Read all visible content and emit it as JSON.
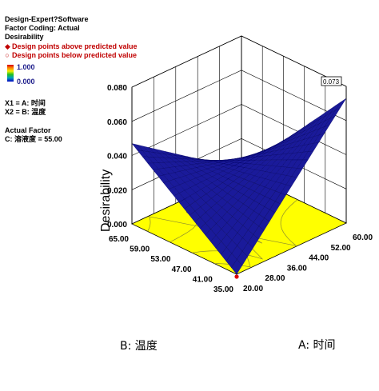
{
  "info": {
    "software": "Design-Expert?Software",
    "coding": "Factor Coding: Actual",
    "response": "Desirability",
    "legend_above": "Design points above predicted value",
    "legend_below": "Design points below predicted value",
    "colorbar_max": "1.000",
    "colorbar_min": "0.000",
    "x1": "X1 = A: 时间",
    "x2": "X2 = B: 温度",
    "actual_factor_header": "Actual Factor",
    "actual_factor": "C: 溶液度 = 55.00"
  },
  "colors": {
    "surface": "#1a1a9a",
    "floor": "#ffff00",
    "design_point": "#e00000"
  },
  "chart_data": {
    "type": "surface3d",
    "xlabel": "A: 时间",
    "ylabel": "B: 温度",
    "zlabel": "Desirability",
    "x_ticks": [
      "20.00",
      "28.00",
      "36.00",
      "44.00",
      "52.00",
      "60.00"
    ],
    "y_ticks": [
      "35.00",
      "41.00",
      "47.00",
      "53.00",
      "59.00",
      "65.00"
    ],
    "z_ticks": [
      "0.000",
      "0.020",
      "0.040",
      "0.060",
      "0.080"
    ],
    "xlim": [
      20,
      60
    ],
    "ylim": [
      35,
      65
    ],
    "zlim": [
      0,
      0.08
    ],
    "corner_values": [
      {
        "A": 20,
        "B": 35,
        "desirability": 0
      },
      {
        "A": 60,
        "B": 35,
        "desirability": 0.073
      },
      {
        "A": 20,
        "B": 65,
        "desirability": 0.047
      },
      {
        "A": 60,
        "B": 65,
        "desirability": 0.002
      }
    ],
    "min_point": {
      "A": 20,
      "B": 35,
      "desirability": 0
    },
    "max_label": "0.073",
    "grid": true
  }
}
